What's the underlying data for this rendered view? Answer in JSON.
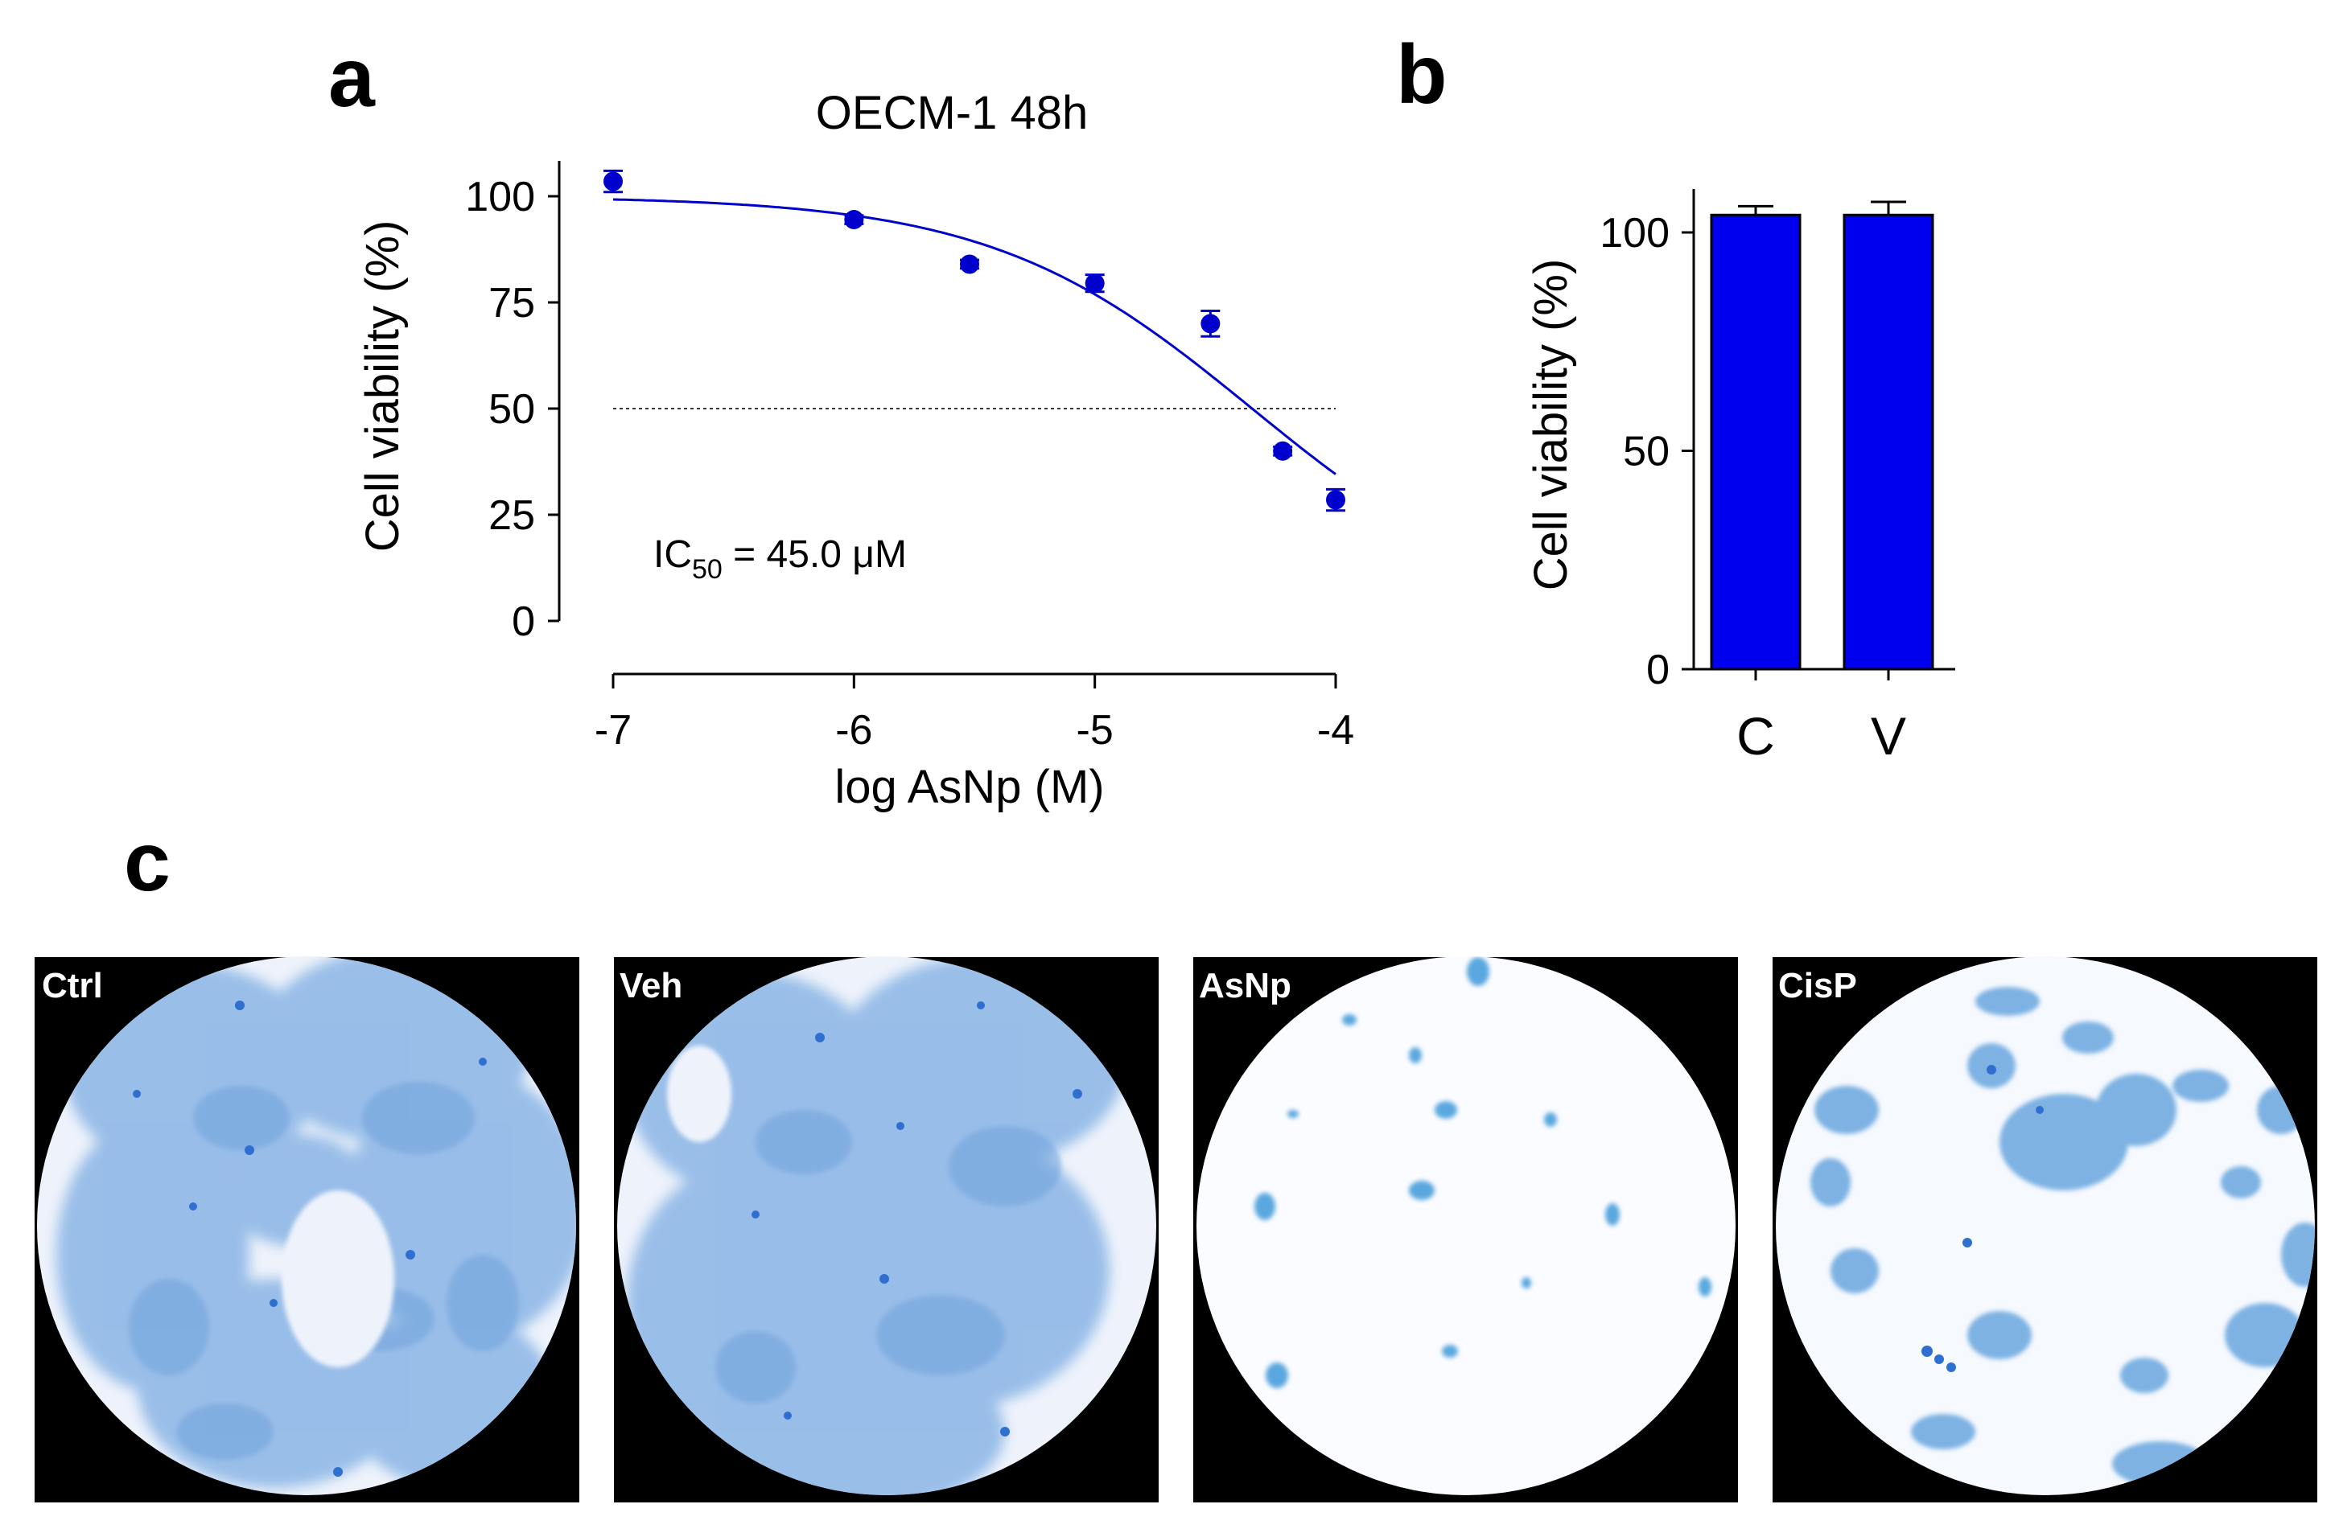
{
  "panels": {
    "a": "a",
    "b": "b",
    "c": "c"
  },
  "chart_data": [
    {
      "type": "scatter",
      "title": "OECM-1 48h",
      "xlabel": "log AsNp (M)",
      "ylabel": "Cell viability (%)",
      "xlim": [
        -7,
        -4
      ],
      "ylim": [
        0,
        105
      ],
      "xticks": [
        -7,
        -6,
        -5,
        -4
      ],
      "xtick_labels": [
        "-7",
        "-6",
        "-5",
        "-4"
      ],
      "yticks": [
        0,
        25,
        50,
        75,
        100
      ],
      "ytick_labels": [
        "0",
        "25",
        "50",
        "75",
        "100"
      ],
      "series": [
        {
          "name": "OECM-1",
          "color": "#0000cc",
          "x": [
            -7,
            -6,
            -5.52,
            -5,
            -4.52,
            -4.22,
            -4
          ],
          "y": [
            103.5,
            94.5,
            84,
            79.5,
            70,
            40,
            28.5
          ],
          "err": [
            2.5,
            1,
            1,
            2,
            3,
            1,
            2.5
          ]
        }
      ],
      "fit": {
        "top": 100,
        "bottom": 0,
        "logIC50": -4.347,
        "hill": 0.8,
        "color": "#0000cc"
      },
      "reference_line_y": 50,
      "annotation": {
        "prefix": "IC",
        "sub": "50",
        "suffix": " = 45.0 μM"
      }
    },
    {
      "type": "bar",
      "xlabel": "",
      "ylabel": "Cell viability (%)",
      "ylim": [
        0,
        108
      ],
      "yticks": [
        0,
        50,
        100
      ],
      "ytick_labels": [
        "0",
        "50",
        "100"
      ],
      "categories": [
        "C",
        "V"
      ],
      "values": [
        104,
        104
      ],
      "err": [
        2,
        3
      ],
      "color": "#0000ee"
    }
  ],
  "micrographs": [
    {
      "label": "Ctrl",
      "name": "ctrl"
    },
    {
      "label": "Veh",
      "name": "veh"
    },
    {
      "label": "AsNp",
      "name": "asnp"
    },
    {
      "label": "CisP",
      "name": "cisp"
    }
  ]
}
